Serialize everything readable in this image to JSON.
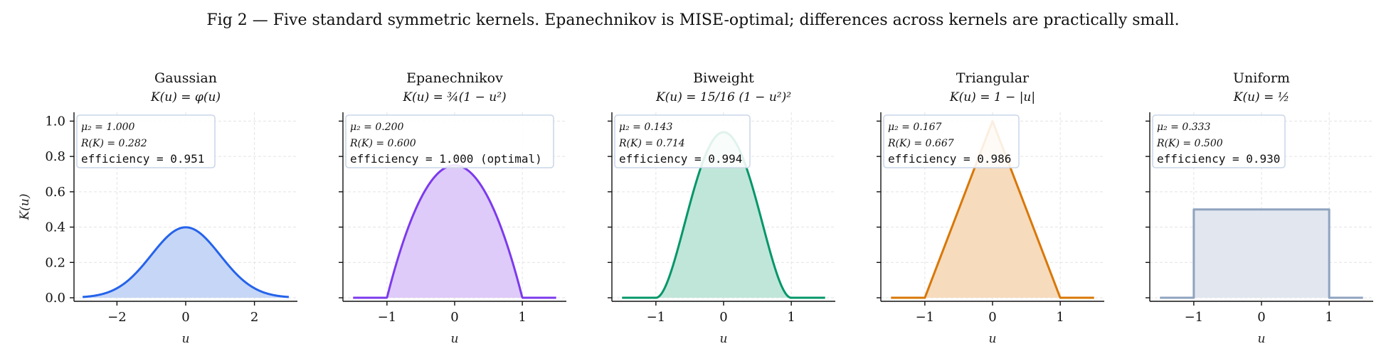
{
  "figure": {
    "title": "Fig 2 — Five standard symmetric kernels. Epanechnikov is MISE-optimal; differences across kernels are practically small.",
    "ylabel": "K(u)"
  },
  "chart_data": [
    {
      "type": "line",
      "title": "Gaussian",
      "subtitle": "K(u) = φ(u)",
      "xlabel": "u",
      "kernel": "gaussian",
      "color": "#2563eb",
      "fill": "#c6d6f6",
      "xlim": [
        -3.25,
        3.25
      ],
      "ylim": [
        -0.02,
        1.05
      ],
      "xticks": [
        -2,
        0,
        2
      ],
      "xtick_labels": [
        "−2",
        "0",
        "2"
      ],
      "yticks": [
        0.0,
        0.2,
        0.4,
        0.6,
        0.8,
        1.0
      ],
      "ytick_labels": [
        "0.0",
        "0.2",
        "0.4",
        "0.6",
        "0.8",
        "1.0"
      ],
      "domain": [
        -3,
        3
      ],
      "grid": true,
      "info": [
        "μ₂ = 1.000",
        "R(K) = 0.282",
        "efficiency = 0.951"
      ]
    },
    {
      "type": "line",
      "title": "Epanechnikov",
      "subtitle": "K(u) = ¾(1 − u²)",
      "xlabel": "u",
      "kernel": "epanechnikov",
      "color": "#7c3aed",
      "fill": "#decbf9",
      "xlim": [
        -1.65,
        1.65
      ],
      "ylim": [
        -0.02,
        1.05
      ],
      "xticks": [
        -1,
        0,
        1
      ],
      "xtick_labels": [
        "−1",
        "0",
        "1"
      ],
      "yticks": [
        0.0,
        0.2,
        0.4,
        0.6,
        0.8,
        1.0
      ],
      "domain": [
        -1.5,
        1.5
      ],
      "grid": true,
      "info": [
        "μ₂ = 0.200",
        "R(K) = 0.600",
        "efficiency = 1.000 (optimal)"
      ]
    },
    {
      "type": "line",
      "title": "Biweight",
      "subtitle": "K(u) = 15/16 (1 − u²)²",
      "xlabel": "u",
      "kernel": "biweight",
      "color": "#059669",
      "fill": "#c0e6d9",
      "xlim": [
        -1.65,
        1.65
      ],
      "ylim": [
        -0.02,
        1.05
      ],
      "xticks": [
        -1,
        0,
        1
      ],
      "xtick_labels": [
        "−1",
        "0",
        "1"
      ],
      "yticks": [
        0.0,
        0.2,
        0.4,
        0.6,
        0.8,
        1.0
      ],
      "domain": [
        -1.5,
        1.5
      ],
      "grid": true,
      "info": [
        "μ₂ = 0.143",
        "R(K) = 0.714",
        "efficiency = 0.994"
      ]
    },
    {
      "type": "line",
      "title": "Triangular",
      "subtitle": "K(u) = 1 − |u|",
      "xlabel": "u",
      "kernel": "triangular",
      "color": "#d97706",
      "fill": "#f6dbbd",
      "xlim": [
        -1.65,
        1.65
      ],
      "ylim": [
        -0.02,
        1.05
      ],
      "xticks": [
        -1,
        0,
        1
      ],
      "xtick_labels": [
        "−1",
        "0",
        "1"
      ],
      "yticks": [
        0.0,
        0.2,
        0.4,
        0.6,
        0.8,
        1.0
      ],
      "domain": [
        -1.5,
        1.5
      ],
      "grid": true,
      "info": [
        "μ₂ = 0.167",
        "R(K) = 0.667",
        "efficiency = 0.986"
      ]
    },
    {
      "type": "line",
      "title": "Uniform",
      "subtitle": "K(u) = ½",
      "xlabel": "u",
      "kernel": "uniform",
      "color": "#8fa3bf",
      "fill": "#e2e6ee",
      "xlim": [
        -1.65,
        1.65
      ],
      "ylim": [
        -0.02,
        1.05
      ],
      "xticks": [
        -1,
        0,
        1
      ],
      "xtick_labels": [
        "−1",
        "0",
        "1"
      ],
      "yticks": [
        0.0,
        0.2,
        0.4,
        0.6,
        0.8,
        1.0
      ],
      "domain": [
        -1.5,
        1.5
      ],
      "grid": true,
      "info": [
        "μ₂ = 0.333",
        "R(K) = 0.500",
        "efficiency = 0.930"
      ]
    }
  ]
}
